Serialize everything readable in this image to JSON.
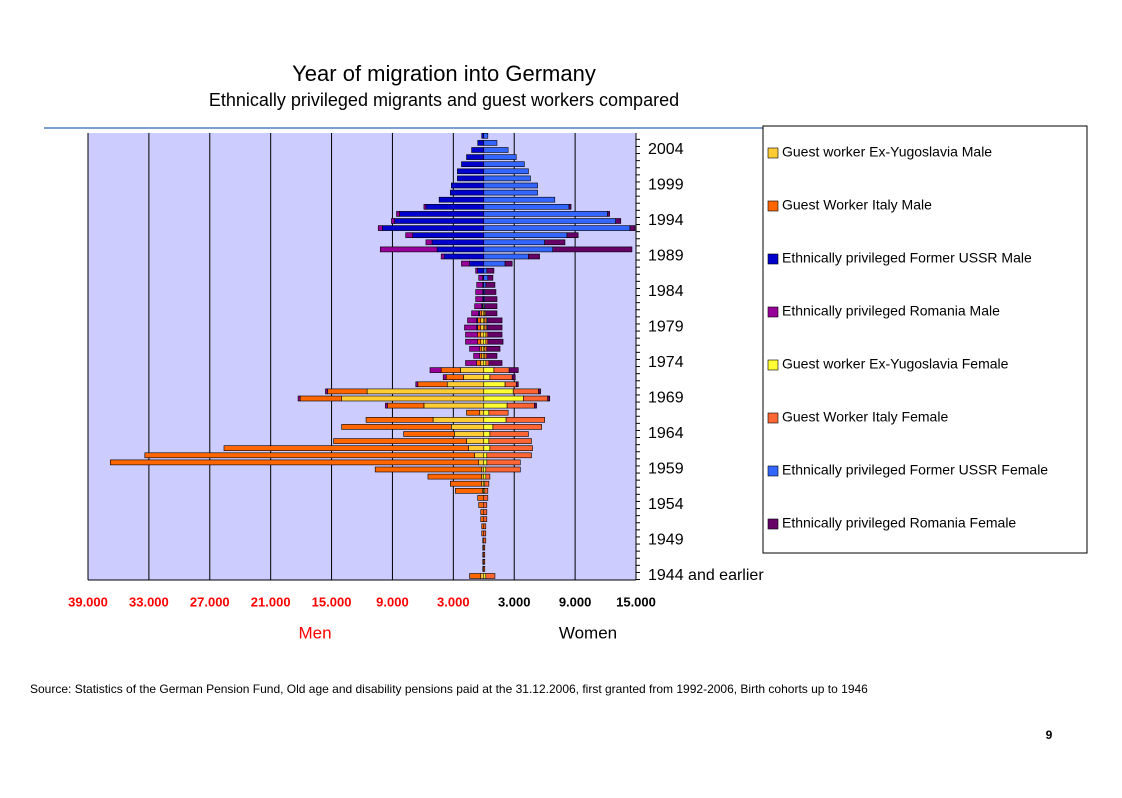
{
  "chart_data": {
    "type": "bar",
    "orientation": "horizontal",
    "stacked": true,
    "title": "Year of migration into Germany",
    "subtitle": "Ethnically privileged migrants and guest workers compared",
    "men_label": "Men",
    "women_label": "Women",
    "side_label_colors": [
      "#ff0000",
      "#000000"
    ],
    "plot_background": "#ccccff",
    "grid": true,
    "legend": "right",
    "source": "Source: Statistics of the German Pension Fund, Old age and disability pensions paid at the 31.12.2006,  first granted from 1992-2006,  Birth cohorts up to 1946",
    "page_number": "9",
    "xlim": [
      -39000,
      15000
    ],
    "xticks": [
      {
        "value": -39000,
        "label": "39.000"
      },
      {
        "value": -33000,
        "label": "33.000"
      },
      {
        "value": -27000,
        "label": "27.000"
      },
      {
        "value": -21000,
        "label": "21.000"
      },
      {
        "value": -15000,
        "label": "15.000"
      },
      {
        "value": -9000,
        "label": "9.000"
      },
      {
        "value": -3000,
        "label": "3.000"
      },
      {
        "value": 3000,
        "label": "3.000"
      },
      {
        "value": 9000,
        "label": "9.000"
      },
      {
        "value": 15000,
        "label": "15.000"
      }
    ],
    "categories": [
      "1944 and earlier",
      null,
      null,
      null,
      null,
      "1949",
      null,
      null,
      null,
      null,
      "1954",
      null,
      null,
      null,
      null,
      "1959",
      null,
      null,
      null,
      null,
      "1964",
      null,
      null,
      null,
      null,
      "1969",
      null,
      null,
      null,
      null,
      "1974",
      null,
      null,
      null,
      null,
      "1979",
      null,
      null,
      null,
      null,
      "1984",
      null,
      null,
      null,
      null,
      "1989",
      null,
      null,
      null,
      null,
      "1994",
      null,
      null,
      null,
      null,
      "1999",
      null,
      null,
      null,
      null,
      "2004",
      null,
      null
    ],
    "series": [
      {
        "name": "Guest worker Ex-Yugoslavia Male",
        "color": "#ffcc33",
        "values": [
          -300,
          0,
          0,
          0,
          0,
          0,
          0,
          0,
          0,
          0,
          0,
          0,
          -100,
          -200,
          -200,
          -200,
          -500,
          -900,
          -1500,
          -1700,
          -2900,
          -3200,
          -5000,
          -400,
          -5900,
          -14000,
          -11500,
          -3600,
          -2000,
          -2300,
          -300,
          -200,
          -200,
          -300,
          -300,
          -300,
          -300,
          -200,
          -100,
          0,
          0,
          0,
          0,
          0,
          0,
          0,
          0,
          0,
          0,
          0,
          0,
          0,
          0,
          0,
          0,
          0,
          0,
          0,
          0,
          0,
          0,
          0,
          0
        ]
      },
      {
        "name": "Guest Worker Italy Male",
        "color": "#ff6600",
        "values": [
          -1100,
          -100,
          -100,
          -100,
          -100,
          -100,
          -200,
          -200,
          -300,
          -300,
          -500,
          -600,
          -2700,
          -3100,
          -5300,
          -10500,
          -36300,
          -32500,
          -24100,
          -13100,
          -5000,
          -10800,
          -6600,
          -1300,
          -3600,
          -4100,
          -3900,
          -2900,
          -1700,
          -1900,
          -400,
          -200,
          -200,
          -300,
          -300,
          -300,
          -300,
          -200,
          0,
          0,
          0,
          0,
          0,
          0,
          0,
          0,
          0,
          0,
          0,
          0,
          0,
          0,
          0,
          0,
          0,
          0,
          0,
          0,
          0,
          0,
          0,
          0,
          0
        ]
      },
      {
        "name": "Ethnically privileged Former USSR Male",
        "color": "#0000cc",
        "values": [
          0,
          0,
          0,
          0,
          0,
          0,
          0,
          0,
          0,
          0,
          0,
          0,
          0,
          0,
          0,
          0,
          0,
          0,
          0,
          0,
          0,
          0,
          0,
          0,
          0,
          0,
          0,
          0,
          0,
          0,
          0,
          0,
          0,
          0,
          0,
          -100,
          -100,
          -100,
          -100,
          -100,
          -100,
          -100,
          -100,
          -600,
          -1400,
          -3900,
          -4600,
          -5100,
          -7000,
          -10000,
          -8800,
          -8300,
          -5700,
          -4400,
          -3300,
          -3200,
          -2600,
          -2600,
          -2200,
          -1700,
          -1200,
          -600,
          -200
        ]
      },
      {
        "name": "Ethnically privileged Romania Male",
        "color": "#990099",
        "values": [
          0,
          0,
          0,
          0,
          0,
          0,
          0,
          0,
          0,
          0,
          0,
          0,
          0,
          0,
          0,
          0,
          0,
          0,
          0,
          0,
          0,
          0,
          0,
          0,
          -200,
          -200,
          -200,
          -200,
          -300,
          -1100,
          -1100,
          -600,
          -1000,
          -1200,
          -1200,
          -1200,
          -900,
          -700,
          -700,
          -700,
          -700,
          -600,
          -400,
          -200,
          -800,
          -300,
          -5600,
          -600,
          -700,
          -400,
          -300,
          -300,
          -200,
          0,
          0,
          0,
          0,
          0,
          0,
          0,
          0,
          0,
          0
        ]
      },
      {
        "name": "Guest worker Ex-Yugoslavia Female",
        "color": "#ffff33",
        "values": [
          200,
          0,
          0,
          0,
          0,
          0,
          0,
          0,
          0,
          0,
          0,
          0,
          100,
          100,
          200,
          200,
          300,
          300,
          600,
          500,
          600,
          900,
          2200,
          500,
          2300,
          3900,
          2900,
          2100,
          600,
          1000,
          200,
          100,
          100,
          200,
          200,
          100,
          100,
          100,
          0,
          0,
          0,
          0,
          0,
          0,
          0,
          0,
          0,
          0,
          0,
          0,
          0,
          0,
          0,
          0,
          0,
          0,
          0,
          0,
          0,
          0,
          0,
          0,
          0
        ]
      },
      {
        "name": "Guest Worker Italy Female",
        "color": "#ff6633",
        "values": [
          900,
          100,
          100,
          100,
          100,
          200,
          200,
          200,
          300,
          300,
          300,
          400,
          300,
          400,
          400,
          3400,
          3300,
          4400,
          4200,
          4200,
          3800,
          4800,
          3800,
          1900,
          2700,
          2400,
          2500,
          1100,
          2200,
          1500,
          300,
          200,
          200,
          200,
          200,
          200,
          200,
          100,
          0,
          0,
          0,
          0,
          0,
          0,
          0,
          0,
          0,
          0,
          0,
          0,
          0,
          0,
          0,
          0,
          0,
          0,
          0,
          0,
          0,
          0,
          0,
          0,
          0
        ]
      },
      {
        "name": "Ethnically privileged Former USSR Female",
        "color": "#3366ff",
        "values": [
          0,
          0,
          0,
          0,
          0,
          0,
          0,
          0,
          0,
          0,
          0,
          0,
          0,
          0,
          0,
          0,
          0,
          0,
          0,
          0,
          0,
          0,
          0,
          0,
          0,
          0,
          0,
          0,
          0,
          0,
          0,
          0,
          0,
          0,
          0,
          100,
          100,
          0,
          100,
          100,
          100,
          200,
          400,
          300,
          2100,
          4400,
          6800,
          6000,
          8200,
          14400,
          13000,
          12200,
          8400,
          7000,
          5300,
          5300,
          4600,
          4400,
          4000,
          3200,
          2400,
          1300,
          400
        ]
      },
      {
        "name": "Ethnically privileged Romania Female",
        "color": "#660066",
        "values": [
          0,
          0,
          0,
          0,
          0,
          0,
          0,
          0,
          0,
          0,
          0,
          0,
          0,
          0,
          0,
          0,
          0,
          0,
          0,
          0,
          0,
          0,
          0,
          0,
          200,
          200,
          200,
          200,
          300,
          900,
          1300,
          1000,
          1300,
          1500,
          1400,
          1400,
          1400,
          1100,
          1200,
          1200,
          1100,
          900,
          500,
          700,
          700,
          1100,
          7800,
          2000,
          1100,
          500,
          500,
          200,
          200,
          0,
          0,
          0,
          0,
          0,
          0,
          0,
          0,
          0,
          0
        ]
      }
    ]
  }
}
